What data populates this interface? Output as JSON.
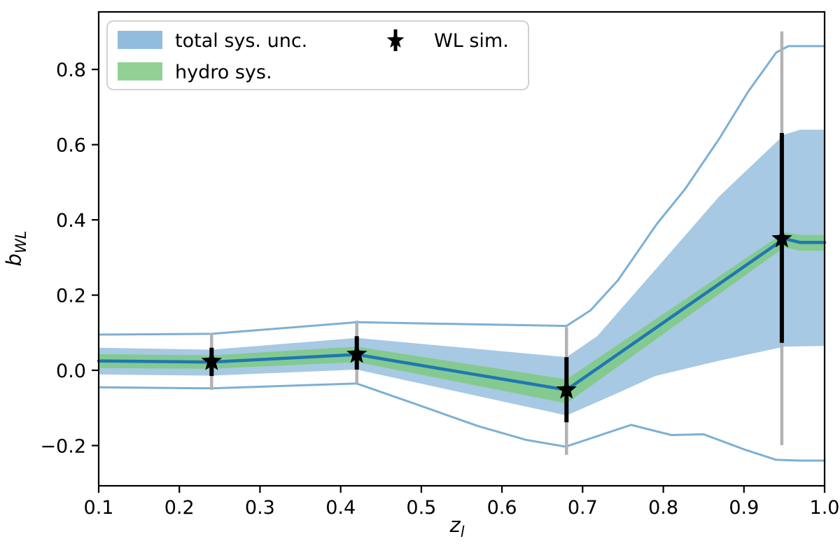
{
  "figure": {
    "background": "#ffffff",
    "description": "Weak-lensing mass bias vs lens redshift with systematic uncertainty bands"
  },
  "colors": {
    "total_band_fill": "#a7c9e3",
    "envelope_line": "#7db0d5",
    "hydro_band_fill": "#84ca90",
    "central_line": "#1f77b4",
    "gray_errorbar": "#b3b3b3",
    "black_errorbar": "#000000",
    "legend_patch_blue": "#92bcdd",
    "legend_patch_green": "#93d096",
    "spine": "#000000",
    "legend_border": "#cccccc"
  },
  "legend": {
    "items": [
      {
        "type": "patch",
        "color": "#92bcdd",
        "label": "total sys. unc."
      },
      {
        "type": "patch",
        "color": "#93d096",
        "label": "hydro sys."
      },
      {
        "type": "star",
        "color": "#000000",
        "label": "WL sim."
      }
    ]
  },
  "axes": {
    "xlabel": {
      "base": "z",
      "sub": "l"
    },
    "ylabel": {
      "base": "b",
      "sub": "WL"
    }
  },
  "chart_data": {
    "type": "area",
    "title": "",
    "xlabel": "z_l",
    "ylabel": "b_WL",
    "xlim": [
      0.1,
      1.0
    ],
    "ylim": [
      -0.307,
      0.953
    ],
    "grid": false,
    "legend_position": "upper left",
    "x_tick_values": [
      0.1,
      0.2,
      0.3,
      0.4,
      0.5,
      0.6,
      0.7,
      0.8,
      0.9,
      1.0
    ],
    "x_tick_labels": [
      "0.1",
      "0.2",
      "0.3",
      "0.4",
      "0.5",
      "0.6",
      "0.7",
      "0.8",
      "0.9",
      "1.0"
    ],
    "y_tick_values": [
      -0.2,
      0.0,
      0.2,
      0.4,
      0.6,
      0.8
    ],
    "y_tick_labels": [
      "−0.2",
      "0.0",
      "0.2",
      "0.4",
      "0.6",
      "0.8"
    ],
    "bands": [
      {
        "name": "total-sys-band",
        "label": "total sys. unc.",
        "fill": "#a7c9e3",
        "top": [
          [
            0.1,
            0.06
          ],
          [
            0.24,
            0.055
          ],
          [
            0.42,
            0.086
          ],
          [
            0.68,
            0.035
          ],
          [
            0.718,
            0.091
          ],
          [
            0.792,
            0.272
          ],
          [
            0.87,
            0.464
          ],
          [
            0.95,
            0.627
          ],
          [
            0.97,
            0.64
          ],
          [
            1.0,
            0.64
          ]
        ],
        "bottom": [
          [
            0.1,
            -0.011
          ],
          [
            0.24,
            -0.014
          ],
          [
            0.42,
            0.002
          ],
          [
            0.68,
            -0.12
          ],
          [
            0.746,
            -0.058
          ],
          [
            0.79,
            -0.015
          ],
          [
            0.87,
            0.026
          ],
          [
            0.95,
            0.063
          ],
          [
            1.0,
            0.065
          ]
        ]
      },
      {
        "name": "hydro-sys-band",
        "label": "hydro sys.",
        "fill": "#84ca90",
        "top": [
          [
            0.1,
            0.043
          ],
          [
            0.24,
            0.04
          ],
          [
            0.42,
            0.063
          ],
          [
            0.68,
            -0.024
          ],
          [
            0.95,
            0.367
          ],
          [
            0.97,
            0.36
          ],
          [
            1.0,
            0.36
          ]
        ],
        "bottom": [
          [
            0.1,
            0.006
          ],
          [
            0.24,
            0.004
          ],
          [
            0.42,
            0.022
          ],
          [
            0.68,
            -0.088
          ],
          [
            0.95,
            0.327
          ],
          [
            0.97,
            0.318
          ],
          [
            1.0,
            0.318
          ]
        ]
      }
    ],
    "lines": [
      {
        "name": "envelope-top-line",
        "color": "#7db0d5",
        "width": 3,
        "points": [
          [
            0.1,
            0.095
          ],
          [
            0.24,
            0.097
          ],
          [
            0.42,
            0.128
          ],
          [
            0.55,
            0.123
          ],
          [
            0.68,
            0.118
          ],
          [
            0.71,
            0.16
          ],
          [
            0.744,
            0.24
          ],
          [
            0.792,
            0.389
          ],
          [
            0.827,
            0.482
          ],
          [
            0.87,
            0.618
          ],
          [
            0.905,
            0.74
          ],
          [
            0.94,
            0.845
          ],
          [
            0.955,
            0.862
          ],
          [
            1.0,
            0.862
          ]
        ]
      },
      {
        "name": "envelope-bottom-line",
        "color": "#7db0d5",
        "width": 3,
        "points": [
          [
            0.1,
            -0.045
          ],
          [
            0.24,
            -0.048
          ],
          [
            0.42,
            -0.035
          ],
          [
            0.5,
            -0.095
          ],
          [
            0.57,
            -0.148
          ],
          [
            0.63,
            -0.185
          ],
          [
            0.679,
            -0.203
          ],
          [
            0.76,
            -0.145
          ],
          [
            0.81,
            -0.172
          ],
          [
            0.85,
            -0.17
          ],
          [
            0.9,
            -0.21
          ],
          [
            0.94,
            -0.238
          ],
          [
            0.97,
            -0.24
          ],
          [
            1.0,
            -0.24
          ]
        ]
      },
      {
        "name": "central-line",
        "color": "#1f77b4",
        "width": 4.5,
        "points": [
          [
            0.1,
            0.025
          ],
          [
            0.24,
            0.022
          ],
          [
            0.42,
            0.042
          ],
          [
            0.68,
            -0.052
          ],
          [
            0.95,
            0.35
          ],
          [
            0.97,
            0.34
          ],
          [
            1.0,
            0.34
          ]
        ]
      }
    ],
    "points": {
      "name": "wl-sim",
      "label": "WL sim.",
      "marker": "star",
      "color": "#000000",
      "x": [
        0.24,
        0.42,
        0.68,
        0.947
      ],
      "y": [
        0.024,
        0.043,
        -0.052,
        0.35
      ],
      "err_black_lo_hi": [
        [
          -0.015,
          0.06
        ],
        [
          0.002,
          0.091
        ],
        [
          -0.138,
          0.035
        ],
        [
          0.073,
          0.631
        ]
      ],
      "err_gray_lo_hi": [
        [
          -0.052,
          0.099
        ],
        [
          -0.035,
          0.132
        ],
        [
          -0.225,
          0.115
        ],
        [
          -0.199,
          0.901
        ]
      ]
    }
  }
}
